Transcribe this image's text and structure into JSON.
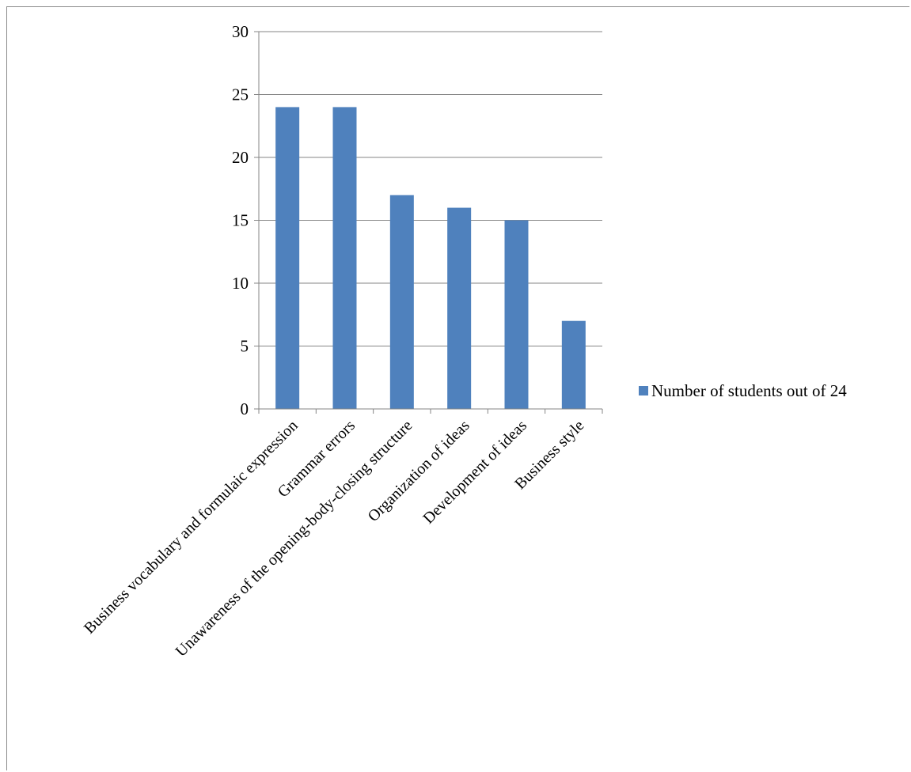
{
  "chart_data": {
    "type": "bar",
    "categories": [
      "Business vocabulary and formulaic expression",
      "Grammar errors",
      "Unawareness of the opening-body-closing structure",
      "Organization of ideas",
      "Development of ideas",
      "Business style"
    ],
    "series": [
      {
        "name": "Number of students out of 24",
        "values": [
          24,
          24,
          17,
          16,
          15,
          7
        ]
      }
    ],
    "yticks": [
      0,
      5,
      10,
      15,
      20,
      25,
      30
    ],
    "ylim": [
      0,
      30
    ],
    "grid": true,
    "legend_position": "right",
    "colors": {
      "bar": "#4f81bd",
      "grid": "#868686",
      "axis": "#868686"
    }
  }
}
